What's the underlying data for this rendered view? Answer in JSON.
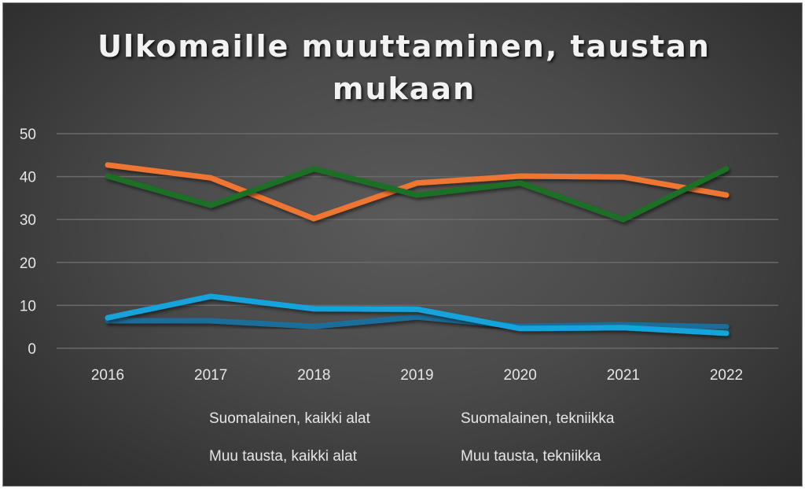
{
  "chart_data": {
    "type": "line",
    "title": "Ulkomaille muuttaminen, taustan mukaan",
    "xlabel": "",
    "ylabel": "",
    "categories": [
      "2016",
      "2017",
      "2018",
      "2019",
      "2020",
      "2021",
      "2022"
    ],
    "ylim": [
      0,
      50
    ],
    "yticks": [
      0,
      10,
      20,
      30,
      40,
      50
    ],
    "grid": true,
    "legend": "bottom",
    "series": [
      {
        "name": "Suomalainen, kaikki alat",
        "color": "#1f6e9a",
        "values": [
          6.4,
          6.4,
          5.1,
          7.3,
          5.1,
          5.5,
          5.0
        ]
      },
      {
        "name": "Suomalainen, tekniikka",
        "color": "#12a3dc",
        "values": [
          7.1,
          12.1,
          9.2,
          9.1,
          4.6,
          4.8,
          3.5
        ]
      },
      {
        "name": "Muu tausta, kaikki alat",
        "color": "#ee7430",
        "values": [
          42.7,
          39.7,
          30.2,
          38.5,
          40.1,
          39.9,
          35.7
        ]
      },
      {
        "name": "Muu tausta, tekniikka",
        "color": "#1f7026",
        "values": [
          40.1,
          33.3,
          41.8,
          35.7,
          38.5,
          30.0,
          41.8
        ]
      }
    ]
  }
}
